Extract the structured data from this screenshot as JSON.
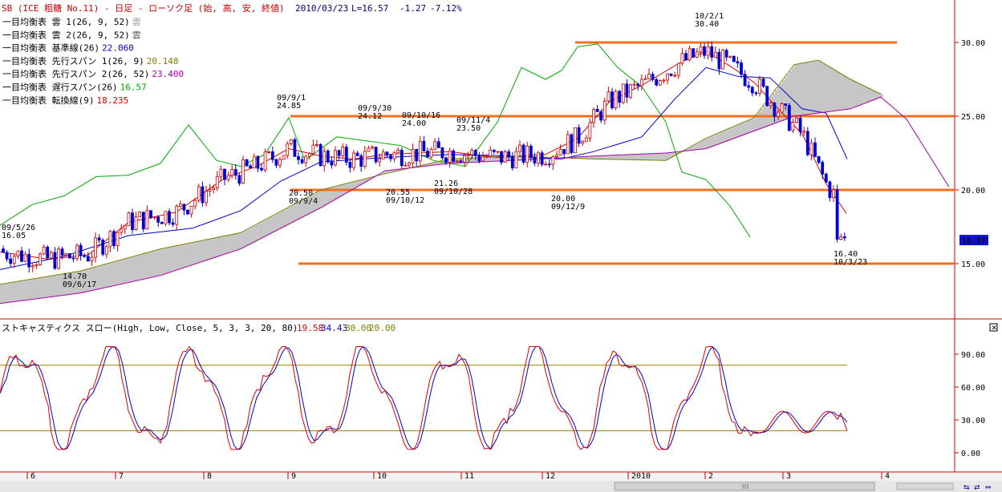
{
  "header": {
    "title": "SB (ICE 粗糖 No.11) - 日足 - ローソク足 (始, 高, 安, 終値)",
    "date": "2010/03/23",
    "last": "L=16.57",
    "change": "-1.27",
    "change_pct": "-7.12%"
  },
  "indicators": [
    {
      "label": "一目均衡表 雲 1(26, 9, 52)",
      "value": "雲",
      "color": "#999999"
    },
    {
      "label": "一目均衡表 雲 2(26, 9, 52)",
      "value": "雲",
      "color": "#555555"
    },
    {
      "label": "一目均衡表 基準線(26)",
      "value": "22.060",
      "color": "#0000cc"
    },
    {
      "label": "一目均衡表 先行スパン 1(26, 9)",
      "value": "20.148",
      "color": "#808000"
    },
    {
      "label": "一目均衡表 先行スパン 2(26, 52)",
      "value": "23.400",
      "color": "#aa00aa"
    },
    {
      "label": "一目均衡表 遅行スパン(26)",
      "value": "16.57",
      "color": "#00aa00"
    },
    {
      "label": "一目均衡表 転換線(9)",
      "value": "18.235",
      "color": "#dd0000"
    }
  ],
  "price_axis": {
    "ticks": [
      "30.00",
      "25.00",
      "20.00",
      "15.00"
    ],
    "current": "16.57"
  },
  "annotations": [
    {
      "date": "09/5/26",
      "price": "16.05"
    },
    {
      "date": "09/6/17",
      "price": "14.70"
    },
    {
      "date": "09/9/1",
      "price": "24.85"
    },
    {
      "date": "09/9/4",
      "price": "20.50"
    },
    {
      "date": "09/9/30",
      "price": "24.12"
    },
    {
      "date": "09/10/16",
      "price": "24.00"
    },
    {
      "date": "09/10/12",
      "price": "20.55"
    },
    {
      "date": "09/11/4",
      "price": "23.50"
    },
    {
      "date": "09/10/28",
      "price": "21.26"
    },
    {
      "date": "09/12/9",
      "price": "20.00"
    },
    {
      "date": "10/2/1",
      "price": "30.40"
    },
    {
      "date": "10/3/23",
      "price": "16.40"
    }
  ],
  "stochastic": {
    "label": "ストキャスティクス スロー(High, Low, Close, 5, 3, 3, 20, 80)",
    "values": [
      {
        "text": "19.58",
        "color": "#dd0000"
      },
      {
        "text": "34.43",
        "color": "#0000cc"
      },
      {
        "text": "80.00",
        "color": "#808000"
      },
      {
        "text": "20.00",
        "color": "#808000"
      }
    ],
    "ticks": [
      "90.00",
      "60.00",
      "30.00",
      "0.00"
    ]
  },
  "x_axis": {
    "labels": [
      "6",
      "7",
      "8",
      "9",
      "10",
      "11",
      "12",
      "2010",
      "2",
      "3",
      "4"
    ]
  },
  "chart_data": {
    "type": "candlestick",
    "title": "SB (ICE 粗糖 No.11) - 日足 - ローソク足 (始, 高, 安, 終値)",
    "ylim": [
      11.5,
      32
    ],
    "horizontal_lines": [
      30.0,
      25.0,
      20.0,
      15.0
    ],
    "series": [
      {
        "name": "一目均衡表 遅行スパン(26)",
        "color": "#00aa00",
        "values": [
          [
            0,
            17.6
          ],
          [
            40,
            19.0
          ],
          [
            80,
            19.6
          ],
          [
            120,
            20.9
          ],
          [
            160,
            21.0
          ],
          [
            200,
            21.8
          ],
          [
            235,
            24.4
          ],
          [
            270,
            22.0
          ],
          [
            300,
            21.6
          ],
          [
            330,
            22.4
          ],
          [
            360,
            24.9
          ],
          [
            380,
            22.0
          ],
          [
            420,
            23.6
          ],
          [
            460,
            23.3
          ],
          [
            500,
            23.0
          ],
          [
            540,
            22.0
          ],
          [
            580,
            21.6
          ],
          [
            620,
            24.6
          ],
          [
            650,
            28.3
          ],
          [
            680,
            27.5
          ],
          [
            700,
            28.1
          ],
          [
            720,
            29.7
          ],
          [
            745,
            29.9
          ],
          [
            770,
            28.3
          ],
          [
            800,
            27.0
          ],
          [
            830,
            24.6
          ],
          [
            850,
            21.2
          ],
          [
            880,
            20.7
          ],
          [
            910,
            18.9
          ],
          [
            935,
            16.8
          ]
        ]
      },
      {
        "name": "一目均衡表 転換線(9)",
        "color": "#dd0000",
        "values": [
          [
            0,
            15.8
          ],
          [
            60,
            15.3
          ],
          [
            110,
            15.6
          ],
          [
            160,
            17.8
          ],
          [
            220,
            18.5
          ],
          [
            280,
            20.8
          ],
          [
            320,
            21.6
          ],
          [
            360,
            22.8
          ],
          [
            400,
            22.3
          ],
          [
            440,
            22.1
          ],
          [
            480,
            22.4
          ],
          [
            520,
            22.5
          ],
          [
            560,
            22.6
          ],
          [
            620,
            22.2
          ],
          [
            680,
            22.4
          ],
          [
            720,
            23.5
          ],
          [
            760,
            26.0
          ],
          [
            800,
            27.1
          ],
          [
            850,
            28.7
          ],
          [
            880,
            29.4
          ],
          [
            910,
            28.4
          ],
          [
            940,
            27.3
          ],
          [
            970,
            25.5
          ],
          [
            1000,
            23.8
          ],
          [
            1030,
            20.4
          ],
          [
            1055,
            18.4
          ]
        ]
      },
      {
        "name": "一目均衡表 基準線(26)",
        "color": "#0000cc",
        "values": [
          [
            0,
            14.6
          ],
          [
            80,
            15.5
          ],
          [
            160,
            16.9
          ],
          [
            240,
            17.4
          ],
          [
            300,
            18.6
          ],
          [
            350,
            20.6
          ],
          [
            400,
            21.9
          ],
          [
            480,
            22.2
          ],
          [
            560,
            22.4
          ],
          [
            640,
            22.3
          ],
          [
            700,
            22.1
          ],
          [
            740,
            22.6
          ],
          [
            800,
            23.6
          ],
          [
            840,
            26.1
          ],
          [
            880,
            28.3
          ],
          [
            920,
            27.7
          ],
          [
            960,
            27.6
          ],
          [
            1000,
            25.5
          ],
          [
            1030,
            25.2
          ],
          [
            1056,
            22.1
          ]
        ]
      },
      {
        "name": "一目均衡表 先行スパン 1(26, 9)",
        "color": "#808000",
        "values": [
          [
            0,
            13.6
          ],
          [
            100,
            14.5
          ],
          [
            200,
            16.0
          ],
          [
            300,
            17.1
          ],
          [
            400,
            20.0
          ],
          [
            480,
            21.1
          ],
          [
            560,
            22.1
          ],
          [
            640,
            22.3
          ],
          [
            740,
            22.1
          ],
          [
            830,
            22.0
          ],
          [
            880,
            23.5
          ],
          [
            940,
            24.9
          ],
          [
            990,
            28.5
          ],
          [
            1020,
            28.8
          ],
          [
            1060,
            27.5
          ],
          [
            1098,
            26.5
          ]
        ]
      },
      {
        "name": "一目均衡表 先行スパン 2(26, 52)",
        "color": "#aa00aa",
        "values": [
          [
            0,
            12.3
          ],
          [
            100,
            13.0
          ],
          [
            200,
            14.2
          ],
          [
            300,
            16.0
          ],
          [
            400,
            18.8
          ],
          [
            480,
            21.3
          ],
          [
            560,
            21.8
          ],
          [
            640,
            22.0
          ],
          [
            740,
            22.3
          ],
          [
            830,
            22.5
          ],
          [
            880,
            22.8
          ],
          [
            940,
            24.0
          ],
          [
            990,
            25.0
          ],
          [
            1060,
            25.5
          ],
          [
            1098,
            26.3
          ],
          [
            1130,
            24.8
          ],
          [
            1183,
            20.2
          ]
        ]
      }
    ]
  }
}
